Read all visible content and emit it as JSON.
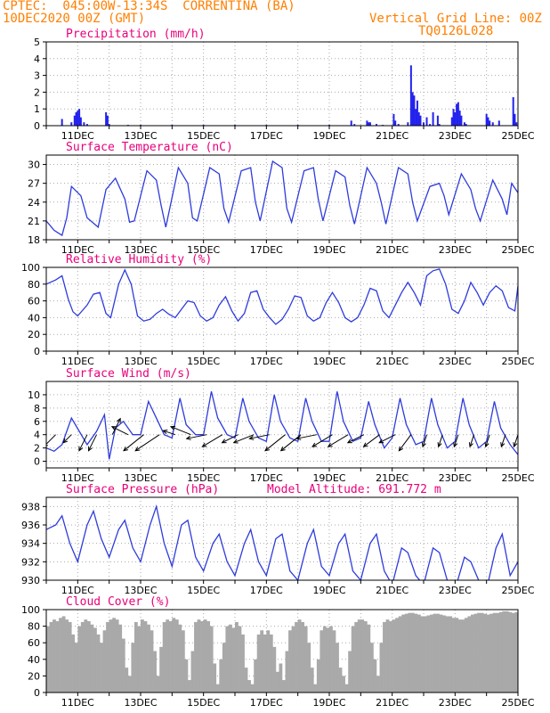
{
  "header": {
    "line1": "CPTEC:  045:00W-13:34S  CORRENTINA (BA)",
    "line2": "10DEC2020 00Z (GMT)",
    "right1": "Vertical Grid Line: 00Z",
    "right2": "TQ0126L028"
  },
  "colors": {
    "line": "#2e3bdc",
    "bar": "#2222ee",
    "cloud": "#a9a9a9",
    "title": "#e8007a",
    "header": "#ff7f00",
    "grid": "#aaaaaa"
  },
  "x_axis": {
    "start_day": 10,
    "end_day": 25,
    "tick_labels": [
      "11DEC",
      "13DEC",
      "15DEC",
      "17DEC",
      "19DEC",
      "21DEC",
      "23DEC",
      "25DEC"
    ],
    "tick_days": [
      11,
      13,
      15,
      17,
      19,
      21,
      23,
      25
    ]
  },
  "chart_data": [
    {
      "id": "precip",
      "type": "bar",
      "title": "Precipitation (mm/h)",
      "ylim": [
        0,
        5
      ],
      "yticks": [
        0,
        1,
        2,
        3,
        4,
        5
      ],
      "x": [
        10.5,
        10.8,
        10.9,
        10.95,
        11.0,
        11.05,
        11.1,
        11.2,
        11.3,
        11.9,
        11.95,
        12.0,
        12.6,
        13.0,
        14.0,
        15.0,
        16.0,
        17.0,
        18.0,
        19.0,
        19.7,
        19.8,
        20.2,
        20.25,
        20.3,
        20.5,
        20.7,
        21.05,
        21.1,
        21.2,
        21.5,
        21.6,
        21.65,
        21.7,
        21.75,
        21.8,
        21.85,
        21.9,
        22.0,
        22.1,
        22.2,
        22.3,
        22.45,
        22.5,
        22.9,
        22.95,
        23.0,
        23.05,
        23.1,
        23.15,
        23.2,
        23.3,
        23.35,
        24.0,
        24.05,
        24.1,
        24.2,
        24.4,
        24.85,
        24.9,
        24.95
      ],
      "values": [
        0.4,
        0.2,
        0.6,
        0.8,
        0.9,
        1.0,
        0.5,
        0.2,
        0.1,
        0.8,
        0.6,
        0.1,
        0.05,
        0.05,
        0.05,
        0.05,
        0.05,
        0.05,
        0.05,
        0.05,
        0.3,
        0.1,
        0.3,
        0.2,
        0.2,
        0.1,
        0.05,
        0.7,
        0.3,
        0.1,
        0.2,
        3.6,
        2.0,
        1.8,
        1.0,
        1.5,
        0.8,
        0.6,
        0.2,
        0.5,
        0.1,
        0.8,
        0.6,
        0.1,
        0.5,
        1.0,
        0.8,
        1.3,
        1.4,
        0.9,
        0.6,
        0.2,
        0.1,
        0.7,
        0.5,
        0.3,
        0.2,
        0.3,
        1.7,
        0.7,
        0.2
      ]
    },
    {
      "id": "temp",
      "type": "line",
      "title": "Surface Temperature (nC)",
      "ylim": [
        18,
        31.5
      ],
      "yticks": [
        18,
        21,
        24,
        27,
        30
      ],
      "x": [
        10.0,
        10.25,
        10.5,
        10.65,
        10.8,
        11.1,
        11.3,
        11.65,
        11.9,
        12.2,
        12.5,
        12.65,
        12.8,
        13.2,
        13.5,
        13.65,
        13.8,
        14.2,
        14.5,
        14.65,
        14.8,
        15.2,
        15.5,
        15.65,
        15.8,
        16.2,
        16.5,
        16.65,
        16.8,
        17.2,
        17.5,
        17.65,
        17.8,
        18.2,
        18.5,
        18.65,
        18.8,
        19.2,
        19.5,
        19.65,
        19.8,
        20.2,
        20.5,
        20.65,
        20.8,
        21.2,
        21.5,
        21.65,
        21.8,
        22.2,
        22.5,
        22.65,
        22.8,
        23.2,
        23.5,
        23.65,
        23.8,
        24.2,
        24.5,
        24.65,
        24.8,
        25.0
      ],
      "values": [
        21.0,
        19.5,
        18.7,
        21.5,
        26.5,
        25.0,
        21.5,
        20.0,
        26.0,
        27.8,
        24.5,
        20.8,
        21.0,
        29.0,
        27.5,
        23.5,
        20.0,
        29.5,
        27.0,
        21.5,
        21.0,
        29.5,
        28.5,
        23.0,
        20.8,
        29.0,
        29.5,
        24.0,
        21.0,
        30.5,
        29.5,
        23.0,
        20.8,
        29.0,
        29.5,
        24.5,
        21.0,
        29.0,
        28.0,
        23.5,
        20.5,
        29.5,
        27.0,
        24.0,
        20.5,
        29.5,
        28.5,
        24.0,
        21.0,
        26.5,
        27.0,
        25.0,
        22.0,
        28.5,
        26.0,
        23.0,
        21.0,
        27.5,
        24.5,
        22.0,
        27.0,
        25.5
      ]
    },
    {
      "id": "rh",
      "type": "line",
      "title": "Relative Humidity (%)",
      "ylim": [
        0,
        100
      ],
      "yticks": [
        0,
        20,
        40,
        60,
        80,
        100
      ],
      "x": [
        10.0,
        10.3,
        10.5,
        10.7,
        10.85,
        11.0,
        11.3,
        11.5,
        11.7,
        11.9,
        12.05,
        12.3,
        12.5,
        12.7,
        12.9,
        13.1,
        13.3,
        13.5,
        13.7,
        13.9,
        14.1,
        14.3,
        14.5,
        14.7,
        14.9,
        15.1,
        15.3,
        15.5,
        15.7,
        15.9,
        16.1,
        16.3,
        16.5,
        16.7,
        16.9,
        17.1,
        17.3,
        17.5,
        17.7,
        17.9,
        18.1,
        18.3,
        18.5,
        18.7,
        18.9,
        19.1,
        19.3,
        19.5,
        19.7,
        19.9,
        20.1,
        20.3,
        20.5,
        20.7,
        20.9,
        21.1,
        21.3,
        21.5,
        21.7,
        21.9,
        22.1,
        22.3,
        22.5,
        22.7,
        22.9,
        23.1,
        23.3,
        23.5,
        23.7,
        23.9,
        24.1,
        24.3,
        24.5,
        24.7,
        24.9,
        25.0
      ],
      "values": [
        80,
        85,
        90,
        62,
        47,
        42,
        55,
        68,
        70,
        45,
        40,
        80,
        97,
        80,
        42,
        36,
        38,
        45,
        50,
        44,
        40,
        50,
        60,
        58,
        42,
        36,
        40,
        55,
        65,
        48,
        36,
        45,
        70,
        72,
        50,
        40,
        32,
        38,
        50,
        66,
        64,
        42,
        36,
        40,
        58,
        70,
        58,
        40,
        35,
        40,
        55,
        75,
        72,
        48,
        40,
        55,
        70,
        82,
        70,
        55,
        90,
        96,
        98,
        80,
        50,
        45,
        60,
        82,
        70,
        55,
        70,
        78,
        72,
        52,
        48,
        78
      ]
    },
    {
      "id": "wind",
      "type": "line",
      "title": "Surface Wind (m/s)",
      "ylim": [
        -1,
        12
      ],
      "yticks": [
        0,
        2,
        4,
        6,
        8,
        10
      ],
      "x": [
        10.0,
        10.25,
        10.5,
        10.8,
        11.05,
        11.3,
        11.6,
        11.85,
        12.0,
        12.2,
        12.45,
        12.75,
        13.0,
        13.25,
        13.45,
        13.75,
        14.0,
        14.25,
        14.45,
        14.75,
        15.0,
        15.25,
        15.45,
        15.75,
        16.0,
        16.25,
        16.45,
        16.75,
        17.0,
        17.25,
        17.45,
        17.75,
        18.0,
        18.25,
        18.45,
        18.75,
        19.0,
        19.25,
        19.45,
        19.75,
        20.0,
        20.25,
        20.45,
        20.75,
        21.0,
        21.25,
        21.45,
        21.75,
        22.0,
        22.25,
        22.45,
        22.75,
        23.0,
        23.25,
        23.45,
        23.75,
        24.0,
        24.25,
        24.45,
        24.75,
        25.0
      ],
      "values": [
        2.0,
        1.5,
        2.5,
        6.5,
        4.5,
        2.5,
        4.5,
        7.0,
        0.3,
        5.0,
        6.0,
        4.0,
        4.0,
        9.0,
        7.0,
        4.0,
        3.5,
        9.5,
        5.5,
        4.0,
        4.0,
        10.5,
        6.5,
        4.0,
        3.5,
        9.5,
        6.0,
        3.5,
        3.0,
        10.0,
        6.0,
        3.5,
        3.0,
        9.5,
        6.0,
        3.0,
        3.0,
        10.5,
        6.0,
        3.0,
        3.5,
        9.0,
        5.5,
        2.0,
        3.5,
        9.5,
        5.5,
        2.5,
        3.0,
        9.5,
        5.5,
        2.0,
        3.0,
        9.5,
        5.5,
        2.0,
        3.0,
        9.0,
        5.0,
        2.5,
        1.0
      ],
      "vectors": {
        "x": [
          10.3,
          10.8,
          11.3,
          11.6,
          12.1,
          12.6,
          13.1,
          13.6,
          14.1,
          14.6,
          15.1,
          15.6,
          16.1,
          16.6,
          17.1,
          17.6,
          18.1,
          18.6,
          19.1,
          19.6,
          20.1,
          20.6,
          21.1,
          21.6,
          22.1,
          22.6,
          23.1,
          23.6,
          24.1,
          24.6,
          25.0
        ],
        "u": [
          -3,
          -2,
          -2,
          -2,
          2,
          -4,
          -5,
          -6,
          -3,
          -5,
          -5,
          -5,
          -4,
          -5,
          -5,
          -5,
          -5,
          -5,
          -5,
          -5,
          -4,
          -4,
          -4,
          -3,
          -1,
          -1,
          -1,
          -1,
          -1,
          -1,
          -1
        ],
        "v": [
          -3,
          -2,
          -4,
          -4,
          4,
          2,
          -4,
          -4,
          1,
          2,
          -1,
          -3,
          -2,
          -2,
          -1,
          -4,
          -4,
          -1,
          -3,
          -3,
          -2,
          -3,
          -2,
          -4,
          -3,
          -3,
          -3,
          -3,
          -3,
          -3,
          -3
        ]
      }
    },
    {
      "id": "pres",
      "type": "line",
      "title": "Surface Pressure (hPa)",
      "annotation": "Model Altitude: 691.772 m",
      "ylim": [
        930,
        939
      ],
      "yticks": [
        930,
        932,
        934,
        936,
        938
      ],
      "x": [
        10.0,
        10.3,
        10.5,
        10.75,
        11.0,
        11.3,
        11.5,
        11.75,
        12.0,
        12.3,
        12.5,
        12.75,
        13.0,
        13.3,
        13.5,
        13.75,
        14.0,
        14.3,
        14.5,
        14.75,
        15.0,
        15.3,
        15.5,
        15.75,
        16.0,
        16.3,
        16.5,
        16.75,
        17.0,
        17.3,
        17.5,
        17.75,
        18.0,
        18.3,
        18.5,
        18.75,
        19.0,
        19.3,
        19.5,
        19.75,
        20.0,
        20.3,
        20.5,
        20.75,
        21.0,
        21.3,
        21.5,
        21.75,
        22.0,
        22.3,
        22.5,
        22.75,
        23.0,
        23.3,
        23.5,
        23.75,
        24.0,
        24.3,
        24.5,
        24.75,
        25.0
      ],
      "values": [
        935.5,
        936.0,
        937.0,
        934.0,
        932.0,
        936.0,
        937.5,
        934.5,
        932.5,
        935.5,
        936.5,
        933.5,
        932.0,
        936.0,
        938.0,
        934.0,
        931.5,
        936.0,
        936.5,
        932.5,
        931.0,
        934.0,
        935.0,
        932.0,
        930.5,
        934.0,
        935.5,
        932.0,
        930.5,
        934.5,
        935.0,
        931.0,
        930.0,
        934.0,
        935.5,
        931.5,
        930.5,
        934.0,
        935.0,
        931.0,
        930.0,
        934.0,
        935.0,
        931.0,
        929.5,
        933.5,
        933.0,
        930.5,
        929.5,
        933.5,
        933.0,
        930.0,
        929.0,
        932.5,
        932.0,
        930.0,
        929.0,
        933.5,
        935.0,
        930.5,
        932.0
      ]
    },
    {
      "id": "cloud",
      "type": "area",
      "title": "Cloud Cover (%)",
      "ylim": [
        0,
        100
      ],
      "yticks": [
        0,
        20,
        40,
        60,
        80,
        100
      ],
      "x": [
        10.0,
        10.1,
        10.2,
        10.3,
        10.4,
        10.5,
        10.6,
        10.7,
        10.8,
        10.9,
        11.0,
        11.1,
        11.2,
        11.3,
        11.4,
        11.5,
        11.6,
        11.7,
        11.8,
        11.9,
        12.0,
        12.1,
        12.2,
        12.3,
        12.4,
        12.5,
        12.6,
        12.7,
        12.8,
        12.9,
        13.0,
        13.1,
        13.2,
        13.3,
        13.4,
        13.5,
        13.6,
        13.7,
        13.8,
        13.9,
        14.0,
        14.1,
        14.2,
        14.3,
        14.4,
        14.5,
        14.6,
        14.7,
        14.8,
        14.9,
        15.0,
        15.1,
        15.2,
        15.3,
        15.4,
        15.5,
        15.6,
        15.7,
        15.8,
        15.9,
        16.0,
        16.1,
        16.2,
        16.3,
        16.4,
        16.5,
        16.6,
        16.7,
        16.8,
        16.9,
        17.0,
        17.1,
        17.2,
        17.3,
        17.4,
        17.5,
        17.6,
        17.7,
        17.8,
        17.9,
        18.0,
        18.1,
        18.2,
        18.3,
        18.4,
        18.5,
        18.6,
        18.7,
        18.8,
        18.9,
        19.0,
        19.1,
        19.2,
        19.3,
        19.4,
        19.5,
        19.6,
        19.7,
        19.8,
        19.9,
        20.0,
        20.1,
        20.2,
        20.3,
        20.4,
        20.5,
        20.6,
        20.7,
        20.8,
        20.9,
        21.0,
        21.1,
        21.2,
        21.3,
        21.4,
        21.5,
        21.6,
        21.7,
        21.8,
        21.9,
        22.0,
        22.1,
        22.2,
        22.3,
        22.4,
        22.5,
        22.6,
        22.7,
        22.8,
        22.9,
        23.0,
        23.1,
        23.2,
        23.3,
        23.4,
        23.5,
        23.6,
        23.7,
        23.8,
        23.9,
        24.0,
        24.1,
        24.2,
        24.3,
        24.4,
        24.5,
        24.6,
        24.7,
        24.8,
        24.9,
        25.0
      ],
      "values": [
        80,
        85,
        88,
        86,
        90,
        92,
        88,
        85,
        70,
        60,
        80,
        85,
        88,
        86,
        82,
        78,
        70,
        60,
        75,
        85,
        88,
        90,
        88,
        82,
        65,
        30,
        20,
        60,
        85,
        80,
        88,
        86,
        82,
        75,
        50,
        20,
        55,
        85,
        88,
        86,
        90,
        88,
        82,
        75,
        40,
        15,
        50,
        85,
        88,
        86,
        88,
        86,
        80,
        35,
        10,
        40,
        60,
        80,
        82,
        78,
        85,
        80,
        70,
        30,
        15,
        10,
        40,
        70,
        75,
        70,
        75,
        70,
        55,
        25,
        35,
        15,
        50,
        75,
        80,
        85,
        88,
        85,
        80,
        60,
        30,
        10,
        40,
        75,
        80,
        78,
        80,
        75,
        60,
        30,
        20,
        10,
        50,
        80,
        85,
        88,
        88,
        86,
        82,
        60,
        40,
        20,
        60,
        85,
        88,
        86,
        88,
        90,
        92,
        94,
        95,
        96,
        96,
        95,
        94,
        92,
        92,
        93,
        94,
        95,
        95,
        94,
        93,
        92,
        92,
        90,
        90,
        88,
        88,
        90,
        92,
        94,
        95,
        96,
        96,
        95,
        94,
        95,
        96,
        96,
        97,
        98,
        98,
        97,
        96,
        97,
        98
      ]
    }
  ]
}
